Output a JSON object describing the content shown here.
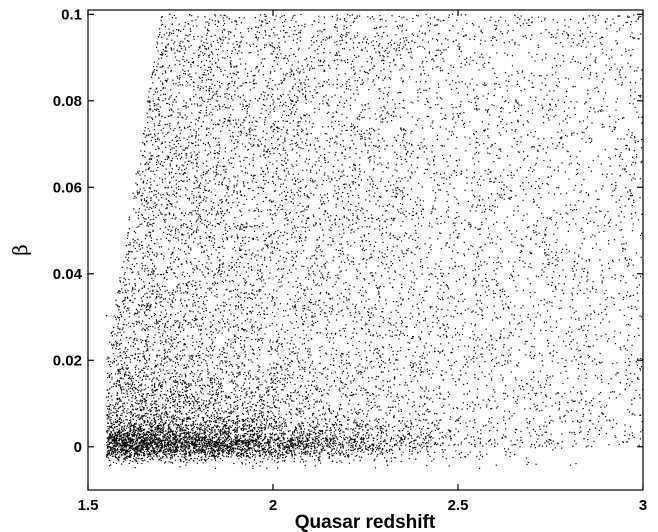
{
  "chart_data": {
    "type": "scatter",
    "title": "",
    "xlabel": "Quasar redshift",
    "ylabel": "β",
    "xlim": [
      1.5,
      3.0
    ],
    "ylim": [
      -0.01,
      0.101
    ],
    "x_ticks": [
      {
        "value": 1.5,
        "label": "1.5"
      },
      {
        "value": 2.0,
        "label": "2"
      },
      {
        "value": 2.5,
        "label": "2.5"
      },
      {
        "value": 3.0,
        "label": "3"
      }
    ],
    "y_ticks": [
      {
        "value": 0.0,
        "label": "0"
      },
      {
        "value": 0.02,
        "label": "0.02"
      },
      {
        "value": 0.04,
        "label": "0.04"
      },
      {
        "value": 0.06,
        "label": "0.06"
      },
      {
        "value": 0.08,
        "label": "0.08"
      },
      {
        "value": 0.1,
        "label": "0.1"
      }
    ],
    "grid": false,
    "legend": "none",
    "marker_color": "#000000",
    "series": [
      {
        "description": "dense band near beta = 0",
        "x_range": [
          1.55,
          3.0
        ],
        "y_range": [
          -0.005,
          0.006
        ],
        "approx_points": 3200
      },
      {
        "description": "broad scatter",
        "x_range": [
          1.55,
          3.0
        ],
        "y_range": [
          0.0,
          0.1
        ],
        "approx_points": 9000
      }
    ]
  }
}
